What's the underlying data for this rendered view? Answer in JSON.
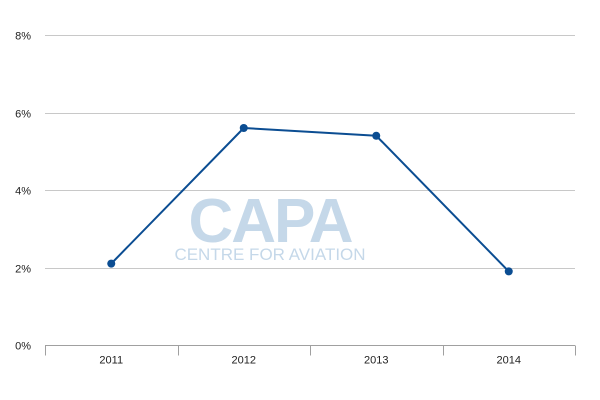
{
  "chart_data": {
    "type": "line",
    "categories": [
      "2011",
      "2012",
      "2013",
      "2014"
    ],
    "series": [
      {
        "values": [
          2.1,
          5.6,
          5.4,
          1.9
        ]
      }
    ],
    "yticks": [
      "0%",
      "2%",
      "4%",
      "6%",
      "8%"
    ],
    "ytick_values": [
      0,
      2,
      4,
      6,
      8
    ],
    "ylim": [
      0,
      8
    ],
    "title": "",
    "xlabel": "",
    "ylabel": "",
    "grid": true,
    "colors": {
      "line": "#0b4d92",
      "grid": "#c8c8c8",
      "axis": "#a0a0a0",
      "text": "#222222"
    }
  },
  "watermark": {
    "logo": "CAPA",
    "tagline": "CENTRE FOR AVIATION",
    "color": "#c5d8e9"
  }
}
